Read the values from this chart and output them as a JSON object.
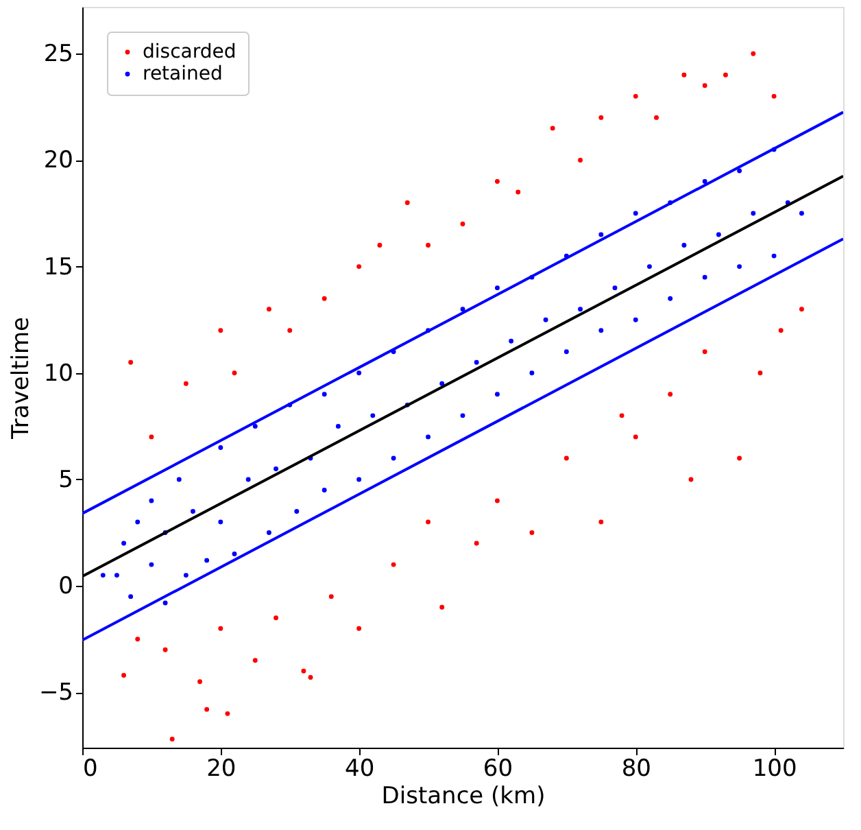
{
  "chart_data": {
    "type": "scatter",
    "xlabel": "Distance (km)",
    "ylabel": "Traveltime",
    "xlim": [
      0,
      110
    ],
    "xticks": [
      0,
      20,
      40,
      60,
      80,
      100
    ],
    "ylim": [
      -7.6,
      27.2
    ],
    "yticks": [
      -5,
      0,
      5,
      10,
      15,
      20,
      25
    ],
    "grid": false,
    "legend": "top left",
    "series": [
      {
        "name": "discarded",
        "color": "#ff0000",
        "marker": "circle",
        "x": [
          6,
          7,
          8,
          10,
          12,
          13,
          15,
          17,
          18,
          20,
          20,
          21,
          22,
          25,
          27,
          28,
          30,
          32,
          33,
          35,
          36,
          40,
          40,
          43,
          45,
          47,
          50,
          50,
          52,
          55,
          57,
          60,
          60,
          63,
          65,
          68,
          70,
          72,
          75,
          75,
          78,
          80,
          80,
          83,
          85,
          87,
          88,
          90,
          90,
          93,
          95,
          97,
          98,
          100,
          101,
          104
        ],
        "values": [
          -4.2,
          10.5,
          -2.5,
          7,
          -3,
          -7.2,
          9.5,
          -4.5,
          -5.8,
          12,
          -2,
          -6,
          10,
          -3.5,
          13,
          -1.5,
          12,
          -4,
          -4.3,
          13.5,
          -0.5,
          15,
          -2,
          16,
          1,
          18,
          3,
          16,
          -1,
          17,
          2,
          19,
          4,
          18.5,
          2.5,
          21.5,
          6,
          20,
          3,
          22,
          8,
          23,
          7,
          22,
          9,
          24,
          5,
          23.5,
          11,
          24,
          6,
          25,
          10,
          23,
          12,
          13
        ]
      },
      {
        "name": "retained",
        "color": "#0000ff",
        "marker": "circle",
        "x": [
          3,
          5,
          6,
          7,
          8,
          10,
          10,
          12,
          12,
          14,
          15,
          16,
          18,
          20,
          20,
          22,
          24,
          25,
          27,
          28,
          30,
          31,
          33,
          35,
          35,
          37,
          40,
          40,
          42,
          45,
          45,
          47,
          50,
          50,
          52,
          55,
          55,
          57,
          60,
          60,
          62,
          65,
          65,
          67,
          70,
          70,
          72,
          75,
          75,
          77,
          80,
          80,
          82,
          85,
          85,
          87,
          90,
          90,
          92,
          95,
          95,
          97,
          100,
          100,
          102,
          104
        ],
        "values": [
          0.5,
          0.5,
          2,
          -0.5,
          3,
          1,
          4,
          -0.8,
          2.5,
          5,
          0.5,
          3.5,
          1.2,
          6.5,
          3,
          1.5,
          5,
          7.5,
          2.5,
          5.5,
          8.5,
          3.5,
          6,
          9,
          4.5,
          7.5,
          10,
          5,
          8,
          11,
          6,
          8.5,
          12,
          7,
          9.5,
          13,
          8,
          10.5,
          14,
          9,
          11.5,
          14.5,
          10,
          12.5,
          15.5,
          11,
          13,
          16.5,
          12,
          14,
          17.5,
          12.5,
          15,
          18,
          13.5,
          16,
          19,
          14.5,
          16.5,
          19.5,
          15,
          17.5,
          20.5,
          15.5,
          18,
          17.5
        ]
      },
      {
        "color": "#000000",
        "type": "line",
        "marker": "none",
        "x": [
          0,
          110
        ],
        "values": [
          0.45,
          19.25
        ]
      },
      {
        "color": "#0000ff",
        "type": "line",
        "marker": "none",
        "x": [
          0,
          110
        ],
        "values": [
          3.4,
          22.25
        ]
      },
      {
        "color": "#0000ff",
        "type": "line",
        "marker": "none",
        "x": [
          0,
          110
        ],
        "values": [
          -2.55,
          16.3
        ]
      }
    ]
  }
}
